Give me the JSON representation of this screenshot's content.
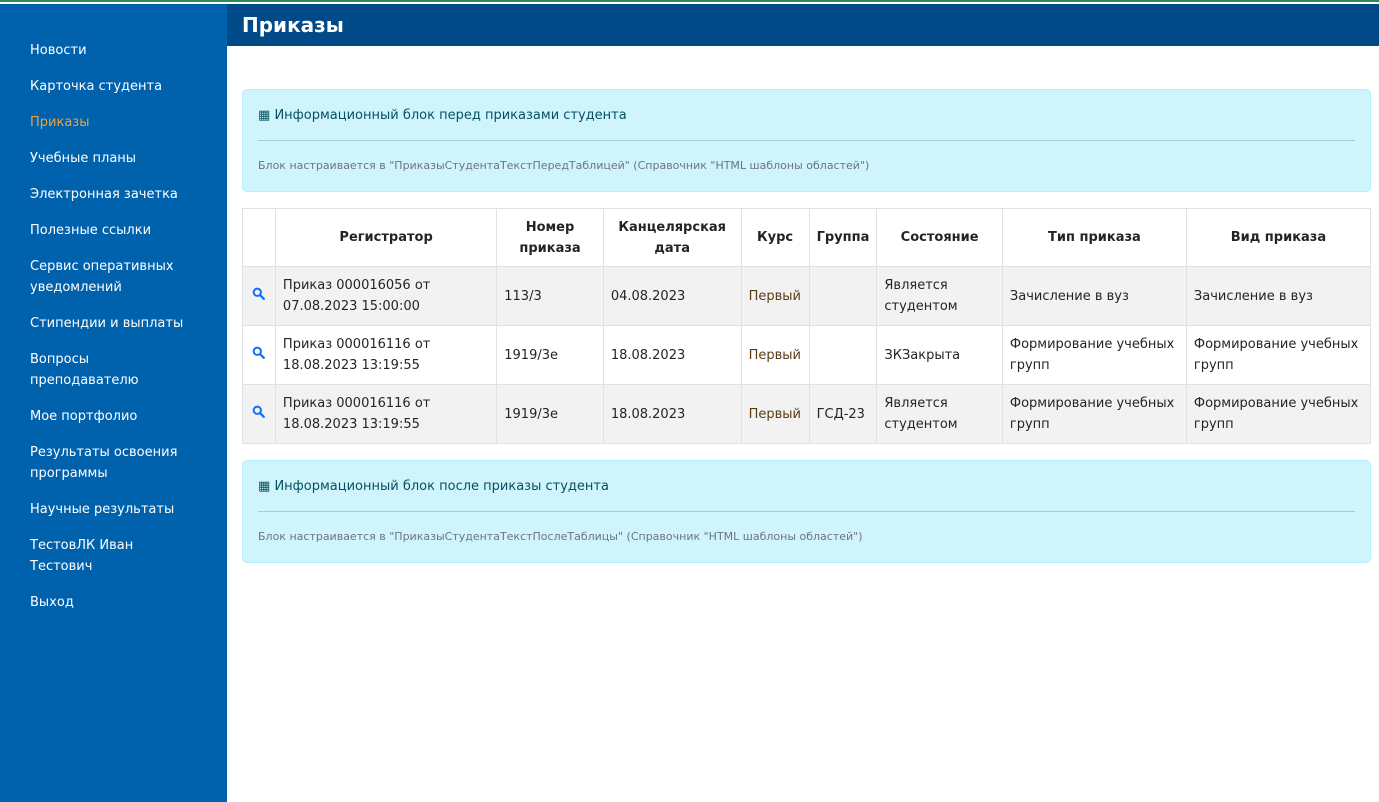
{
  "sidebar": {
    "items": [
      {
        "label": "Новости"
      },
      {
        "label": "Карточка студента"
      },
      {
        "label": "Приказы",
        "active": true
      },
      {
        "label": "Учебные планы"
      },
      {
        "label": "Электронная зачетка"
      },
      {
        "label": "Полезные ссылки"
      },
      {
        "label": "Сервис оперативных уведомлений"
      },
      {
        "label": "Стипендии и выплаты"
      },
      {
        "label": "Вопросы преподавателю"
      },
      {
        "label": "Мое портфолио"
      },
      {
        "label": "Результаты освоения программы"
      },
      {
        "label": "Научные результаты"
      },
      {
        "label": "ТестовЛК Иван Тестович"
      },
      {
        "label": "Выход"
      }
    ]
  },
  "header": {
    "title": "Приказы"
  },
  "info_before": {
    "icon": "table-icon",
    "title": "Информационный блок перед приказами студента",
    "desc": "Блок настраивается в \"ПриказыСтудентаТекстПередТаблицей\" (Справочник \"HTML шаблоны областей\")"
  },
  "info_after": {
    "icon": "table-icon",
    "title": "Информационный блок после приказы студента",
    "desc": "Блок настраивается в \"ПриказыСтудентаТекстПослеТаблицы\" (Справочник \"HTML шаблоны областей\")"
  },
  "table": {
    "columns": [
      "",
      "Регистратор",
      "Номер приказа",
      "Канцелярская дата",
      "Курс",
      "Группа",
      "Состояние",
      "Тип приказа",
      "Вид приказа"
    ],
    "rows": [
      [
        "Приказ 000016056 от 07.08.2023 15:00:00",
        "113/3",
        "04.08.2023",
        "Первый",
        "",
        "Является студентом",
        "Зачисление в вуз",
        "Зачисление в вуз"
      ],
      [
        "Приказ 000016116 от 18.08.2023 13:19:55",
        "1919/3е",
        "18.08.2023",
        "Первый",
        "",
        "ЗКЗакрыта",
        "Формирование учебных групп",
        "Формирование учебных групп"
      ],
      [
        "Приказ 000016116 от 18.08.2023 13:19:55",
        "1919/3е",
        "18.08.2023",
        "Первый",
        "ГСД-23",
        "Является студентом",
        "Формирование учебных групп",
        "Формирование учебных групп"
      ]
    ]
  },
  "colors": {
    "sidebar": "#0061ad",
    "header": "#004a87",
    "active": "#e8a33c",
    "info_bg": "#cff4fc",
    "link": "#0d6efd"
  }
}
